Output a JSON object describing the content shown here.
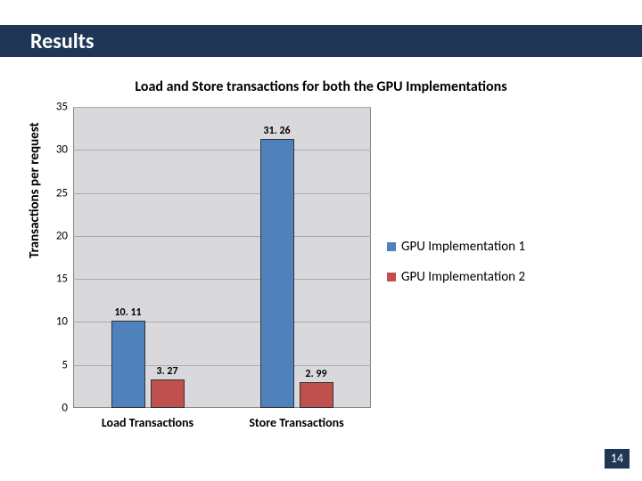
{
  "header": {
    "title": "Results"
  },
  "chart": {
    "type": "bar",
    "title": "Load and Store transactions for both the GPU Implementations",
    "y_axis_label": "Transactions per request",
    "ylim": [
      0,
      35
    ],
    "ytick_step": 5,
    "yticks": [
      "0",
      "5",
      "10",
      "15",
      "20",
      "25",
      "30",
      "35"
    ],
    "background_color": "#d9d9dd",
    "grid_color": "#ababad",
    "categories": [
      "Load Transactions",
      "Store Transactions"
    ],
    "series": [
      {
        "name": "GPU Implementation 1",
        "color": "#4f81bd",
        "values": [
          10.11,
          31.26
        ]
      },
      {
        "name": "GPU Implementation 2",
        "color": "#c0504d",
        "values": [
          3.27,
          2.99
        ]
      }
    ],
    "bar_labels": [
      "10. 11",
      "3. 27",
      "31. 26",
      "2. 99"
    ],
    "bar_border": "#333333",
    "label_fontsize": 12
  },
  "legend": {
    "items": [
      {
        "label": "GPU Implementation 1",
        "color": "#4f81bd"
      },
      {
        "label": "GPU Implementation 2",
        "color": "#c0504d"
      }
    ]
  },
  "page_number": "14"
}
